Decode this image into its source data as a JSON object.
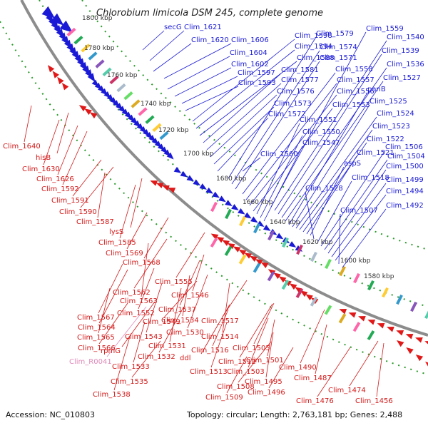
{
  "title": "Chlorobium limicola DSM 245, complete genome",
  "footer": {
    "accession": "Accession: NC_010803",
    "summary": "Topology: circular; Length: 2,763,181 bp; Genes: 2,488"
  },
  "colors": {
    "backbone": "#8c8c8c",
    "dotted_ring": "#2a9a2a",
    "forward_label": "#1a1ad6",
    "reverse_label": "#d41818",
    "rna_label": "#e08ab9"
  },
  "ticks": [
    "1800 kbp",
    "1780 kbp",
    "1760 kbp",
    "1740 kbp",
    "1720 kbp",
    "1700 kbp",
    "1680 kbp",
    "1660 kbp",
    "1640 kbp",
    "1620 kbp",
    "1600 kbp",
    "1580 kbp"
  ],
  "forward_labels": [
    "secG",
    "Clim_1621",
    "Clim_1620",
    "Clim_1606",
    "Clim_1604",
    "Clim_1602",
    "Clim_1597",
    "Clim_1593",
    "Clim_1598",
    "Clim_1594",
    "Clim_1588",
    "Clim_1581",
    "Clim_1577",
    "Clim_1576",
    "Clim_1573",
    "Clim_1572",
    "Clim_1579",
    "Clim_1574",
    "Clim_1571",
    "Clim_1558",
    "Clim_1557",
    "Clim_1556",
    "Clim_1553",
    "Clim_1551",
    "Clim_1550",
    "Clim_1547",
    "Clim_1560",
    "Clim_1559",
    "Clim_1540",
    "Clim_1539",
    "Clim_1536",
    "Clim_1527",
    "panB",
    "Clim_1525",
    "Clim_1524",
    "Clim_1523",
    "Clim_1522",
    "Clim_1521",
    "aspS",
    "Clim_1528",
    "Clim_1518",
    "Clim_1506",
    "Clim_1504",
    "Clim_1500",
    "Clim_1499",
    "Clim_1494",
    "Clim_1507",
    "Clim_1492"
  ],
  "reverse_labels": [
    "Clim_1640",
    "hisB",
    "Clim_1630",
    "Clim_1626",
    "Clim_1592",
    "Clim_1591",
    "Clim_1590",
    "Clim_1587",
    "lysS",
    "Clim_1585",
    "Clim_1569",
    "Clim_1568",
    "Clim_1555",
    "Clim_1562",
    "Clim_1563",
    "Clim_1546",
    "Clim_1552",
    "Clim_1537",
    "Clim_1567",
    "Clim_1564",
    "Clim_1549",
    "Clim_1534",
    "Clim_1565",
    "Clim_1543",
    "Clim_1530",
    "Clim_1517",
    "Clim_1566",
    "rpmG",
    "Clim_1514",
    "Clim_1531",
    "Clim_1516",
    "Clim_1505",
    "Clim_1532",
    "ddl",
    "Clim_1512",
    "Clim_1501",
    "Clim_1533",
    "Clim_1513",
    "Clim_1503",
    "Clim_1490",
    "Clim_1535",
    "Clim_1508",
    "Clim_1495",
    "Clim_1487",
    "Clim_1538",
    "Clim_1509",
    "Clim_1496",
    "Clim_1474",
    "Clim_1476",
    "Clim_1456"
  ],
  "rna_labels": [
    "Clim_R0041"
  ]
}
